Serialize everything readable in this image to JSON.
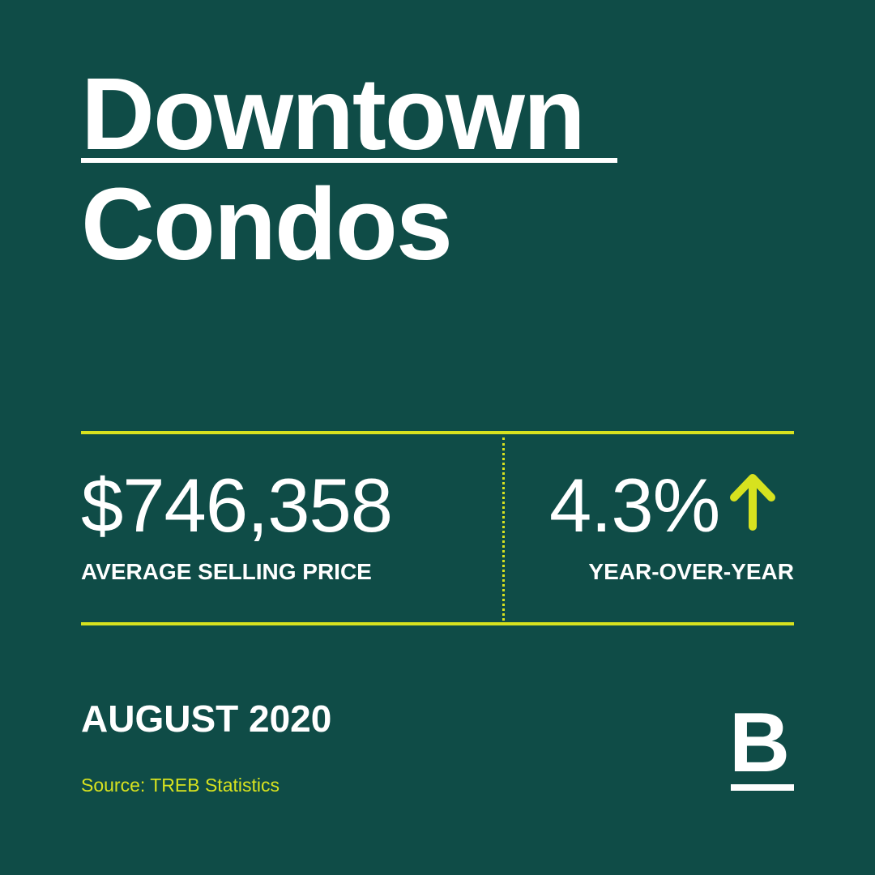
{
  "title": {
    "line1": "Downtown",
    "line2": "Condos"
  },
  "stats": {
    "price": {
      "value": "$746,358",
      "label": "AVERAGE SELLING PRICE"
    },
    "change": {
      "value": "4.3%",
      "direction_icon": "arrow-up-icon",
      "label": "YEAR-OVER-YEAR"
    }
  },
  "period": "AUGUST 2020",
  "source": "Source: TREB Statistics",
  "logo": {
    "icon": "brand-b-logo",
    "text": "B"
  },
  "colors": {
    "background": "#0f4c47",
    "accent": "#d7e21f",
    "text": "#ffffff"
  }
}
